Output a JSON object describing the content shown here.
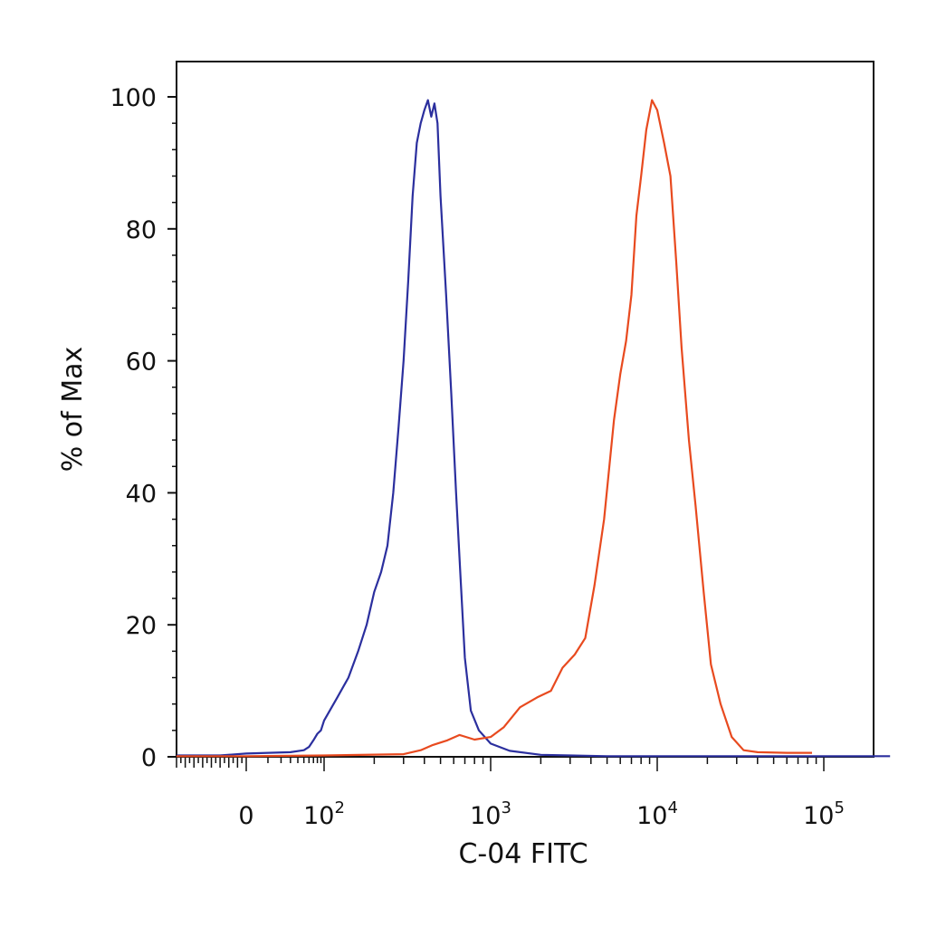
{
  "chart_data": {
    "type": "line",
    "title": "",
    "xlabel": "C-04 FITC",
    "ylabel": "% of Max",
    "x_scale": "biexponential (linear near 0, log above 10^2)",
    "xlim": [
      -800,
      250000
    ],
    "ylim": [
      0,
      105
    ],
    "y_ticks": [
      0,
      20,
      40,
      60,
      80,
      100
    ],
    "x_tick_labels": [
      {
        "value": 0,
        "base": "0",
        "exp": ""
      },
      {
        "value": 100,
        "base": "10",
        "exp": "2"
      },
      {
        "value": 1000,
        "base": "10",
        "exp": "3"
      },
      {
        "value": 10000,
        "base": "10",
        "exp": "4"
      },
      {
        "value": 100000,
        "base": "10",
        "exp": "5"
      }
    ],
    "grid": false,
    "legend": "none",
    "series": [
      {
        "color": "#2b2f9e",
        "points": [
          [
            -800,
            0.2
          ],
          [
            -300,
            0.2
          ],
          [
            0,
            0.5
          ],
          [
            30,
            0.7
          ],
          [
            50,
            1.0
          ],
          [
            60,
            1.5
          ],
          [
            70,
            2.5
          ],
          [
            80,
            3.5
          ],
          [
            90,
            4.0
          ],
          [
            100,
            5.5
          ],
          [
            120,
            9
          ],
          [
            140,
            12
          ],
          [
            160,
            16
          ],
          [
            180,
            20
          ],
          [
            200,
            25
          ],
          [
            220,
            28
          ],
          [
            240,
            32
          ],
          [
            260,
            40
          ],
          [
            280,
            50
          ],
          [
            300,
            60
          ],
          [
            320,
            72
          ],
          [
            340,
            85
          ],
          [
            360,
            93
          ],
          [
            380,
            96
          ],
          [
            400,
            98
          ],
          [
            420,
            99.5
          ],
          [
            440,
            97
          ],
          [
            460,
            99
          ],
          [
            480,
            96
          ],
          [
            500,
            85
          ],
          [
            540,
            70
          ],
          [
            580,
            55
          ],
          [
            620,
            40
          ],
          [
            660,
            27
          ],
          [
            700,
            15
          ],
          [
            760,
            7
          ],
          [
            850,
            4
          ],
          [
            1000,
            2
          ],
          [
            1300,
            0.9
          ],
          [
            2000,
            0.3
          ],
          [
            5000,
            0.1
          ],
          [
            250000,
            0.1
          ]
        ]
      },
      {
        "color": "#e84a1f",
        "points": [
          [
            -800,
            0.1
          ],
          [
            0,
            0.1
          ],
          [
            100,
            0.2
          ],
          [
            300,
            0.4
          ],
          [
            380,
            1.0
          ],
          [
            450,
            1.8
          ],
          [
            550,
            2.5
          ],
          [
            650,
            3.3
          ],
          [
            800,
            2.6
          ],
          [
            1000,
            3.0
          ],
          [
            1200,
            4.5
          ],
          [
            1500,
            7.5
          ],
          [
            1900,
            9.0
          ],
          [
            2300,
            10.0
          ],
          [
            2700,
            13.5
          ],
          [
            3200,
            15.5
          ],
          [
            3700,
            18
          ],
          [
            4200,
            26
          ],
          [
            4800,
            36
          ],
          [
            5500,
            51
          ],
          [
            6000,
            58
          ],
          [
            6500,
            63
          ],
          [
            7000,
            70
          ],
          [
            7500,
            82
          ],
          [
            8000,
            88
          ],
          [
            8600,
            95
          ],
          [
            9300,
            99.5
          ],
          [
            10000,
            98
          ],
          [
            11000,
            93
          ],
          [
            12000,
            88
          ],
          [
            13000,
            75
          ],
          [
            14000,
            62
          ],
          [
            15500,
            48
          ],
          [
            17000,
            38
          ],
          [
            19000,
            25
          ],
          [
            21000,
            14
          ],
          [
            24000,
            8
          ],
          [
            28000,
            3
          ],
          [
            33000,
            1.0
          ],
          [
            40000,
            0.7
          ],
          [
            60000,
            0.6
          ],
          [
            85000,
            0.6
          ]
        ]
      }
    ]
  }
}
